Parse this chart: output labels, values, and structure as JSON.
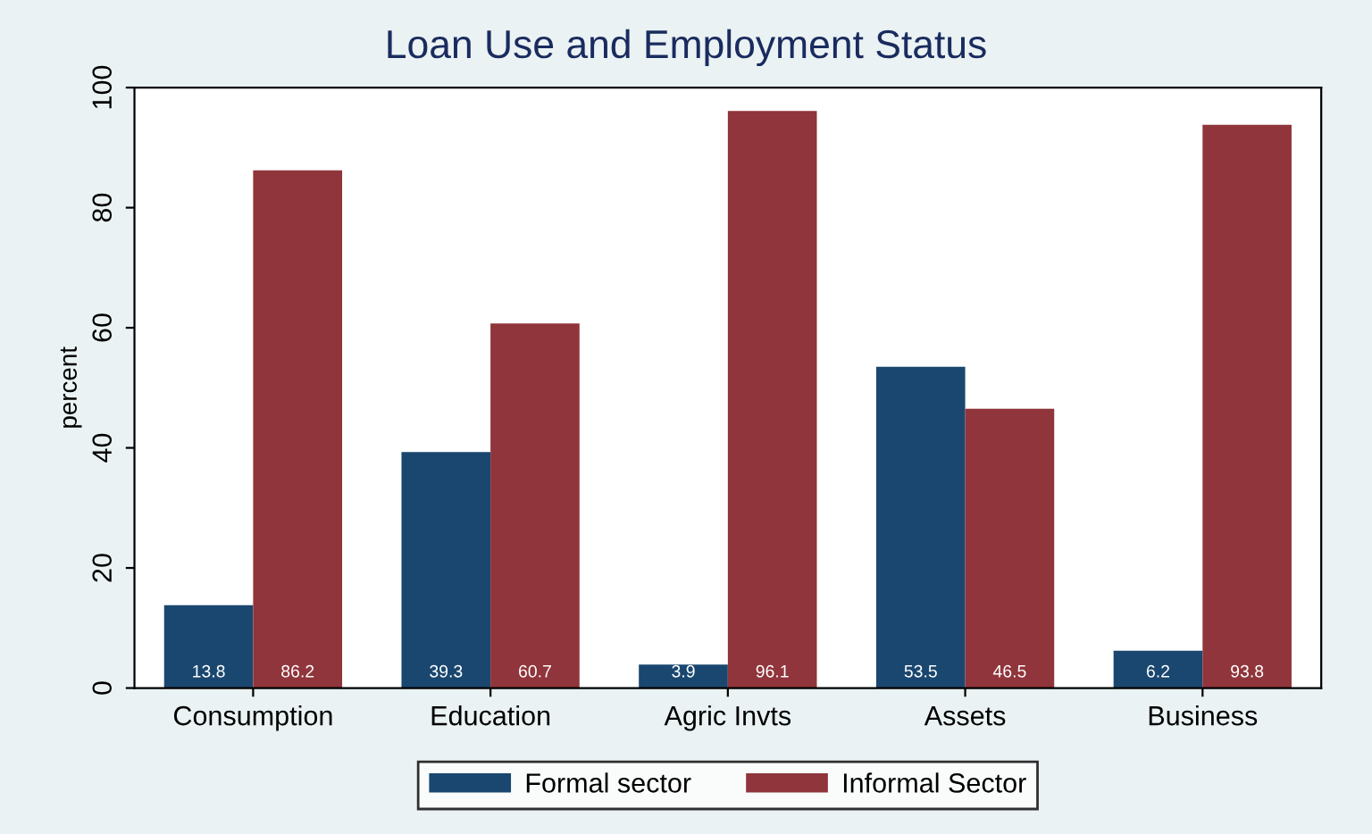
{
  "chart_data": {
    "type": "bar",
    "title": "Loan Use and Employment Status",
    "ylabel": "percent",
    "categories": [
      "Consumption",
      "Education",
      "Agric Invts",
      "Assets",
      "Business"
    ],
    "series": [
      {
        "name": "Formal sector",
        "color": "#1a476f",
        "values": [
          13.8,
          39.3,
          3.9,
          53.5,
          6.2
        ]
      },
      {
        "name": "Informal Sector",
        "color": "#90353b",
        "values": [
          86.2,
          60.7,
          96.1,
          46.5,
          93.8
        ]
      }
    ],
    "ylim": [
      0,
      100
    ],
    "yticks": [
      0,
      20,
      40,
      60,
      80,
      100
    ],
    "grid": false,
    "legend": "bottom",
    "data_labels": true
  }
}
